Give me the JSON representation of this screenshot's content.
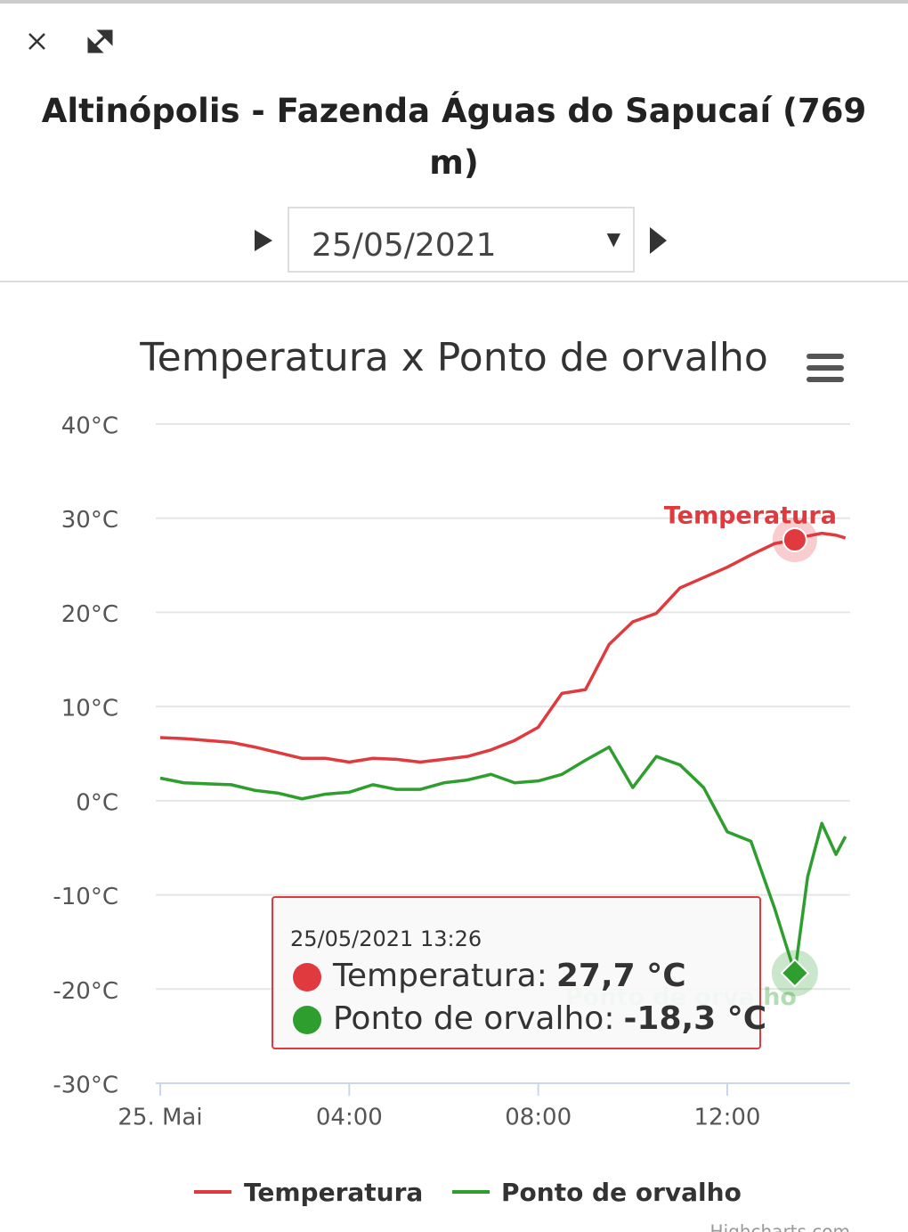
{
  "header": {
    "title": "Altinópolis - Fazenda Águas do Sapucaí (769 m)",
    "date": "25/05/2021"
  },
  "chart_data": {
    "type": "line",
    "title": "Temperatura x Ponto de orvalho",
    "x": [
      0,
      0.5,
      1,
      1.5,
      2,
      2.5,
      3,
      3.5,
      4,
      4.5,
      5,
      5.5,
      6,
      6.5,
      7,
      7.5,
      8,
      8.5,
      9,
      9.5,
      10,
      10.5,
      11,
      11.5,
      12,
      12.5,
      13,
      13.43,
      13.7,
      14,
      14.3,
      14.5
    ],
    "xlim": [
      0,
      14.6
    ],
    "xticks": [
      {
        "value": 0,
        "label": "25. Mai"
      },
      {
        "value": 4,
        "label": "04:00"
      },
      {
        "value": 8,
        "label": "08:00"
      },
      {
        "value": 12,
        "label": "12:00"
      }
    ],
    "ylim": [
      -30,
      40
    ],
    "yticks": [
      {
        "value": -30,
        "label": "-30°C"
      },
      {
        "value": -20,
        "label": "-20°C"
      },
      {
        "value": -10,
        "label": "-10°C"
      },
      {
        "value": 0,
        "label": "0°C"
      },
      {
        "value": 10,
        "label": "10°C"
      },
      {
        "value": 20,
        "label": "20°C"
      },
      {
        "value": 30,
        "label": "30°C"
      },
      {
        "value": 40,
        "label": "40°C"
      }
    ],
    "grid": true,
    "series": [
      {
        "name": "Temperatura",
        "color": "#e0393e",
        "values": [
          6.7,
          6.6,
          6.4,
          6.2,
          5.7,
          5.1,
          4.5,
          4.5,
          4.1,
          4.5,
          4.4,
          4.1,
          4.4,
          4.7,
          5.4,
          6.4,
          7.8,
          11.4,
          11.8,
          16.6,
          19.0,
          19.9,
          22.6,
          23.7,
          24.8,
          26.1,
          27.3,
          27.7,
          28.1,
          28.4,
          28.2,
          27.9
        ]
      },
      {
        "name": "Ponto de orvalho",
        "color": "#2e9e2e",
        "values": [
          2.4,
          1.9,
          1.8,
          1.7,
          1.1,
          0.8,
          0.2,
          0.7,
          0.9,
          1.7,
          1.2,
          1.2,
          1.9,
          2.2,
          2.8,
          1.9,
          2.1,
          2.8,
          4.3,
          5.7,
          1.4,
          4.7,
          3.8,
          1.4,
          -3.3,
          -4.3,
          -11.4,
          -18.3,
          -8.1,
          -2.4,
          -5.7,
          -3.8
        ]
      }
    ],
    "tooltip": {
      "title": "25/05/2021 13:26",
      "rows": [
        {
          "name": "Temperatura:",
          "value": "27,7 °C"
        },
        {
          "name": "Ponto de orvalho:",
          "value": "-18,3 °C"
        }
      ]
    },
    "credits": "Highcharts.com"
  }
}
